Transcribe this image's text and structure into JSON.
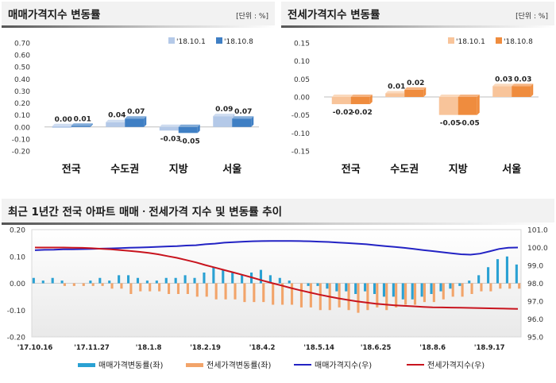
{
  "chart_data": [
    {
      "type": "bar",
      "title": "매매가격지수 변동률",
      "unit": "[단위 : %]",
      "categories": [
        "전국",
        "수도권",
        "지방",
        "서울"
      ],
      "series": [
        {
          "name": "'18.10.1",
          "values": [
            0.0,
            0.04,
            -0.03,
            0.09
          ],
          "labels": [
            "0.00",
            "0.04",
            "-0.03",
            "0.09"
          ]
        },
        {
          "name": "'18.10.8",
          "values": [
            0.01,
            0.07,
            -0.05,
            0.07
          ],
          "labels": [
            "0.01",
            "0.07",
            "-0.05",
            "0.07"
          ]
        }
      ],
      "yticks": [
        "0.70",
        "0.60",
        "0.50",
        "0.40",
        "0.30",
        "0.20",
        "0.10",
        "0.00",
        "-0.10",
        "-0.20"
      ],
      "ylim": [
        -0.2,
        0.7
      ],
      "colors": [
        "#b4c9e8",
        "#3f7fc4"
      ]
    },
    {
      "type": "bar",
      "title": "전세가격지수 변동률",
      "unit": "[단위 : %]",
      "categories": [
        "전국",
        "수도권",
        "지방",
        "서울"
      ],
      "series": [
        {
          "name": "'18.10.1",
          "values": [
            -0.02,
            0.01,
            -0.05,
            0.03
          ],
          "labels": [
            "-0.02",
            "0.01",
            "-0.05",
            "0.03"
          ]
        },
        {
          "name": "'18.10.8",
          "values": [
            -0.02,
            0.02,
            -0.05,
            0.03
          ],
          "labels": [
            "-0.02",
            "0.02",
            "-0.05",
            "0.03"
          ]
        }
      ],
      "yticks": [
        "0.15",
        "0.10",
        "0.05",
        "0.00",
        "-0.05",
        "-0.10",
        "-0.15"
      ],
      "ylim": [
        -0.15,
        0.15
      ],
      "colors": [
        "#f8c49a",
        "#ef8c3e"
      ]
    },
    {
      "type": "bar+line",
      "title": "최근 1년간 전국 아파트 매매ㆍ전세가격 지수 및 변동률 추이",
      "xtick_labels": [
        "'17.10.16",
        "'17.11.27",
        "'18.1.8",
        "'18.2.19",
        "'18.4.2",
        "'18.5.14",
        "'18.6.25",
        "'18.8.6",
        "'18.9.17"
      ],
      "xtick_index": [
        0,
        6,
        12,
        18,
        24,
        30,
        36,
        42,
        48
      ],
      "n_weeks": 52,
      "left_ylim": [
        -0.2,
        0.2
      ],
      "left_yticks": [
        "0.20",
        "0.10",
        "0.00",
        "-0.10",
        "-0.20"
      ],
      "right_ylim": [
        95.0,
        101.0
      ],
      "right_yticks": [
        "101.0",
        "100.0",
        "99.0",
        "98.0",
        "97.0",
        "96.0",
        "95.0"
      ],
      "legend": [
        "매매가격변동률(좌)",
        "전세가격변동률(좌)",
        "매매가격지수(우)",
        "전세가격지수(우)"
      ],
      "colors": {
        "sale_rate": "#2aa1d3",
        "jeonse_rate": "#f2a46a",
        "sale_index": "#2323c4",
        "jeonse_index": "#c8141e"
      },
      "sale_rate": [
        0.02,
        0.01,
        0.02,
        0.01,
        0.0,
        0.0,
        0.01,
        0.02,
        0.01,
        0.03,
        0.03,
        0.02,
        0.01,
        0.01,
        0.02,
        0.02,
        0.03,
        0.02,
        0.04,
        0.06,
        0.05,
        0.04,
        0.03,
        0.04,
        0.05,
        0.03,
        0.02,
        0.01,
        0.0,
        -0.01,
        -0.01,
        -0.02,
        -0.03,
        -0.03,
        -0.04,
        -0.03,
        -0.04,
        -0.05,
        -0.05,
        -0.06,
        -0.06,
        -0.05,
        -0.04,
        -0.03,
        -0.02,
        -0.01,
        0.01,
        0.03,
        0.06,
        0.09,
        0.1,
        0.07
      ],
      "jeonse_rate": [
        0.0,
        0.0,
        0.0,
        -0.01,
        -0.01,
        -0.01,
        -0.01,
        -0.01,
        -0.02,
        -0.02,
        -0.04,
        -0.03,
        -0.03,
        -0.03,
        -0.04,
        -0.04,
        -0.04,
        -0.05,
        -0.05,
        -0.06,
        -0.06,
        -0.06,
        -0.07,
        -0.07,
        -0.07,
        -0.08,
        -0.08,
        -0.08,
        -0.09,
        -0.09,
        -0.1,
        -0.1,
        -0.09,
        -0.1,
        -0.11,
        -0.1,
        -0.09,
        -0.1,
        -0.09,
        -0.08,
        -0.08,
        -0.07,
        -0.07,
        -0.06,
        -0.05,
        -0.05,
        -0.04,
        -0.03,
        -0.03,
        -0.02,
        -0.02,
        -0.02
      ],
      "sale_index": [
        99.85,
        99.87,
        99.88,
        99.9,
        99.9,
        99.91,
        99.92,
        99.94,
        99.95,
        99.97,
        99.99,
        100.0,
        100.02,
        100.04,
        100.06,
        100.08,
        100.11,
        100.13,
        100.18,
        100.22,
        100.27,
        100.3,
        100.33,
        100.35,
        100.36,
        100.37,
        100.37,
        100.37,
        100.36,
        100.35,
        100.33,
        100.31,
        100.28,
        100.25,
        100.22,
        100.18,
        100.13,
        100.08,
        100.03,
        99.98,
        99.92,
        99.86,
        99.8,
        99.74,
        99.68,
        99.62,
        99.6,
        99.66,
        99.78,
        99.92,
        99.99,
        100.0
      ],
      "jeonse_index": [
        100.0,
        100.0,
        100.0,
        100.0,
        99.99,
        99.98,
        99.96,
        99.93,
        99.9,
        99.86,
        99.81,
        99.76,
        99.7,
        99.62,
        99.52,
        99.42,
        99.3,
        99.17,
        99.02,
        98.88,
        98.74,
        98.6,
        98.46,
        98.31,
        98.16,
        98.02,
        97.88,
        97.74,
        97.61,
        97.49,
        97.37,
        97.26,
        97.16,
        97.07,
        96.99,
        96.92,
        96.86,
        96.81,
        96.77,
        96.74,
        96.71,
        96.68,
        96.66,
        96.65,
        96.64,
        96.63,
        96.62,
        96.61,
        96.6,
        96.59,
        96.58,
        96.57
      ]
    }
  ]
}
